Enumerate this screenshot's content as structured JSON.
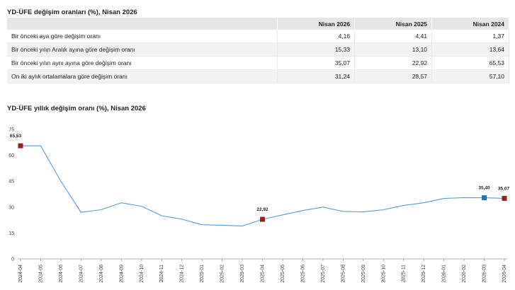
{
  "table": {
    "title": "YD-ÜFE değişim oranları (%), Nisan 2026",
    "headers": [
      "",
      "Nisan 2026",
      "Nisan 2025",
      "Nisan 2024"
    ],
    "rows": [
      {
        "label": "Bir önceki aya göre değişim oranı",
        "values": [
          "4,16",
          "4,41",
          "1,37"
        ]
      },
      {
        "label": "Bir önceki yılın Aralık ayına göre değişim oranı",
        "values": [
          "15,33",
          "13,10",
          "13,64"
        ]
      },
      {
        "label": "Bir önceki yılın aynı ayına göre değişim oranı",
        "values": [
          "35,07",
          "22,92",
          "65,53"
        ]
      },
      {
        "label": "On iki aylık ortalamalara göre değişim oranı",
        "values": [
          "31,24",
          "28,57",
          "57,10"
        ]
      }
    ]
  },
  "chart_data": {
    "type": "line",
    "title": "YD-ÜFE yıllık değişim oranı (%), Nisan 2026",
    "xlabel": "",
    "ylabel": "",
    "ylim": [
      0,
      75
    ],
    "yticks": [
      "0",
      "15",
      "30",
      "45",
      "60",
      "75"
    ],
    "grid": false,
    "x": [
      "2024-04",
      "2024-05",
      "2024-06",
      "2024-07",
      "2024-08",
      "2024-09",
      "2024-10",
      "2024-11",
      "2024-12",
      "2025-01",
      "2025-02",
      "2025-03",
      "2025-04",
      "2025-05",
      "2025-06",
      "2025-07",
      "2025-08",
      "2025-09",
      "2025-10",
      "2025-11",
      "2025-12",
      "2026-01",
      "2026-02",
      "2026-03",
      "2026-04"
    ],
    "series": [
      {
        "values": [
          65.53,
          65.5,
          45.0,
          27.0,
          28.5,
          32.5,
          30.5,
          25.0,
          23.0,
          19.8,
          19.5,
          19.0,
          22.92,
          25.5,
          28.0,
          30.0,
          27.5,
          27.2,
          28.5,
          31.0,
          32.5,
          35.0,
          35.5,
          35.4,
          35.07
        ],
        "color": "#5b9bd5"
      }
    ],
    "highlighted_points": [
      {
        "x": "2024-04",
        "value": 65.53,
        "label": "65,53",
        "color": "#a51c1c"
      },
      {
        "x": "2025-04",
        "value": 22.92,
        "label": "22,92",
        "color": "#a51c1c"
      },
      {
        "x": "2026-03",
        "value": 35.4,
        "label": "35,40",
        "color": "#2f6fa8"
      },
      {
        "x": "2026-04",
        "value": 35.07,
        "label": "35,07",
        "color": "#a51c1c"
      }
    ]
  }
}
